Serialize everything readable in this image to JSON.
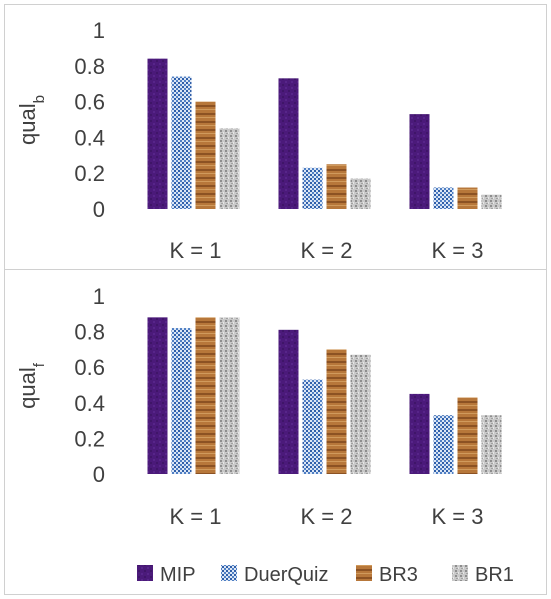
{
  "chart_data": [
    {
      "type": "bar",
      "ylabel": "qual",
      "ylabel_sub": "b",
      "categories": [
        "K = 1",
        "K = 2",
        "K = 3"
      ],
      "yticks": [
        "0",
        "0.2",
        "0.4",
        "0.6",
        "0.8",
        "1"
      ],
      "ylim": [
        0,
        1
      ],
      "grid": false,
      "series": [
        {
          "name": "MIP",
          "values": [
            0.84,
            0.73,
            0.53
          ]
        },
        {
          "name": "DuerQuiz",
          "values": [
            0.74,
            0.23,
            0.12
          ]
        },
        {
          "name": "BR3",
          "values": [
            0.6,
            0.25,
            0.12
          ]
        },
        {
          "name": "BR1",
          "values": [
            0.45,
            0.17,
            0.08
          ]
        }
      ]
    },
    {
      "type": "bar",
      "ylabel": "qual",
      "ylabel_sub": "f",
      "categories": [
        "K = 1",
        "K = 2",
        "K = 3"
      ],
      "yticks": [
        "0",
        "0.2",
        "0.4",
        "0.6",
        "0.8",
        "1"
      ],
      "ylim": [
        0,
        1
      ],
      "grid": false,
      "series": [
        {
          "name": "MIP",
          "values": [
            0.88,
            0.81,
            0.45
          ]
        },
        {
          "name": "DuerQuiz",
          "values": [
            0.82,
            0.53,
            0.33
          ]
        },
        {
          "name": "BR3",
          "values": [
            0.88,
            0.7,
            0.43
          ]
        },
        {
          "name": "BR1",
          "values": [
            0.88,
            0.67,
            0.33
          ]
        }
      ]
    }
  ],
  "legend": {
    "placement": "bottom-right",
    "items": [
      "MIP",
      "DuerQuiz",
      "BR3",
      "BR1"
    ]
  },
  "colors": {
    "MIP": "#4b1a7a",
    "DuerQuiz": "#4f7fc4",
    "BR3": "#a8662e",
    "BR1": "#b5b5b5",
    "panel_border": "#d0d0d0"
  }
}
